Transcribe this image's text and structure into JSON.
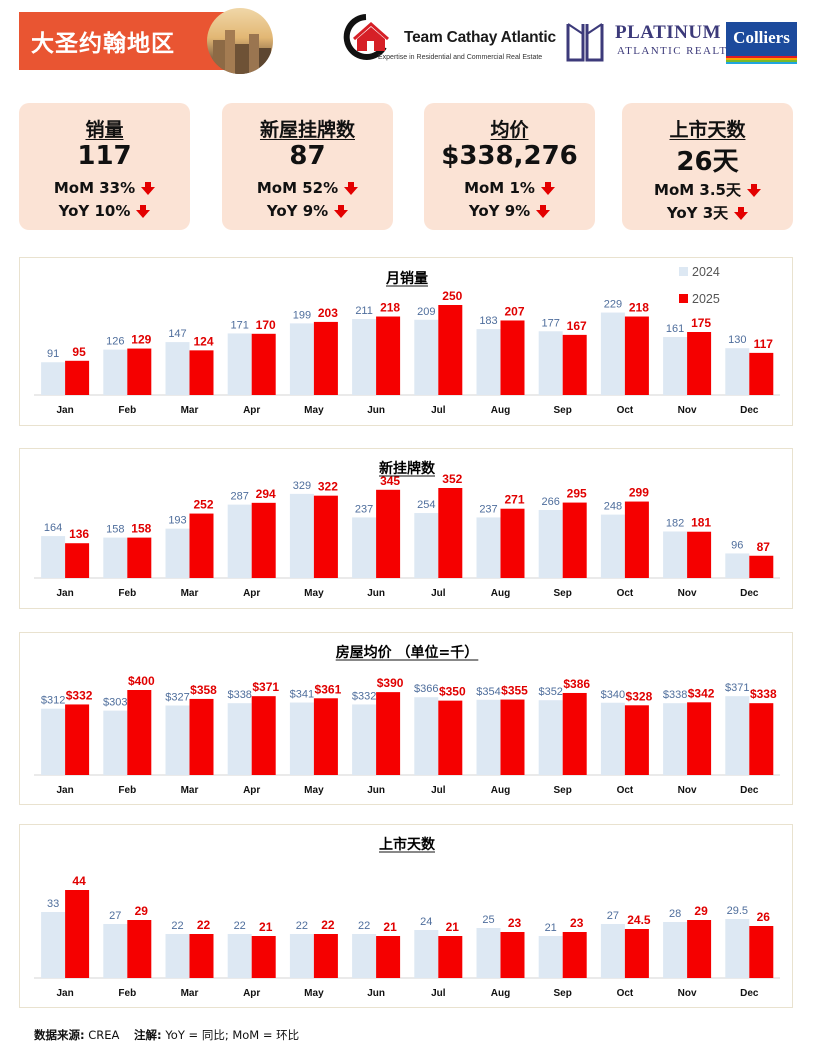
{
  "header": {
    "title": "大圣约翰地区",
    "cathay_name": "Team Cathay Atlantic",
    "cathay_tagline": "Expertise in Residential and Commercial Real Estate",
    "platinum_name": "PLATINUM",
    "platinum_sub": "ATLANTIC REALTY",
    "colliers_name": "Colliers",
    "colors": {
      "banner": "#e95532",
      "platinum": "#3c3a7a",
      "colliers": "#1c4a9c"
    }
  },
  "kpis": [
    {
      "label": "销量",
      "value": "117",
      "mom": "MoM 33%",
      "yoy": "YoY 10%"
    },
    {
      "label": "新屋挂牌数",
      "value": "87",
      "mom": "MoM 52%",
      "yoy": "YoY 9%"
    },
    {
      "label": "均价",
      "value": "$338,276",
      "mom": "MoM 1%",
      "yoy": "YoY 9%"
    },
    {
      "label": "上市天数",
      "value": "26天",
      "mom": "MoM 3.5天",
      "yoy": "YoY 3天"
    }
  ],
  "chart_data": [
    {
      "type": "bar",
      "title": "月销量",
      "categories": [
        "Jan",
        "Feb",
        "Mar",
        "Apr",
        "May",
        "Jun",
        "Jul",
        "Aug",
        "Sep",
        "Oct",
        "Nov",
        "Dec"
      ],
      "series": [
        {
          "name": "2024",
          "color": "#dde8f3",
          "label_color": "#4f6e9c",
          "values": [
            91,
            126,
            147,
            171,
            199,
            211,
            209,
            183,
            177,
            229,
            161,
            130
          ],
          "labels": [
            "91",
            "126",
            "147",
            "171",
            "199",
            "211",
            "209",
            "183",
            "177",
            "229",
            "161",
            "130"
          ]
        },
        {
          "name": "2025",
          "color": "#f50000",
          "label_color": "#e00000",
          "values": [
            95,
            129,
            124,
            170,
            203,
            218,
            250,
            207,
            167,
            218,
            175,
            117
          ],
          "labels": [
            "95",
            "129",
            "124",
            "170",
            "203",
            "218",
            "250",
            "207",
            "167",
            "218",
            "175",
            "117"
          ]
        }
      ],
      "legend": "top-right",
      "ylim": [
        0,
        300
      ]
    },
    {
      "type": "bar",
      "title": "新挂牌数",
      "categories": [
        "Jan",
        "Feb",
        "Mar",
        "Apr",
        "May",
        "Jun",
        "Jul",
        "Aug",
        "Sep",
        "Oct",
        "Nov",
        "Dec"
      ],
      "series": [
        {
          "name": "2024",
          "color": "#dde8f3",
          "label_color": "#4f6e9c",
          "values": [
            164,
            158,
            193,
            287,
            329,
            237,
            254,
            237,
            266,
            248,
            182,
            96
          ],
          "labels": [
            "164",
            "158",
            "193",
            "287",
            "329",
            "237",
            "254",
            "237",
            "266",
            "248",
            "182",
            "96"
          ]
        },
        {
          "name": "2025",
          "color": "#f50000",
          "label_color": "#e00000",
          "values": [
            136,
            158,
            252,
            294,
            322,
            345,
            352,
            271,
            295,
            299,
            181,
            87
          ],
          "labels": [
            "136",
            "158",
            "252",
            "294",
            "322",
            "345",
            "352",
            "271",
            "295",
            "299",
            "181",
            "87"
          ]
        }
      ],
      "ylim": [
        0,
        420
      ]
    },
    {
      "type": "bar",
      "title": "房屋均价 （单位=千）",
      "categories": [
        "Jan",
        "Feb",
        "Mar",
        "Apr",
        "May",
        "Jun",
        "Jul",
        "Aug",
        "Sep",
        "Oct",
        "Nov",
        "Dec"
      ],
      "series": [
        {
          "name": "2024",
          "color": "#dde8f3",
          "label_color": "#4f6e9c",
          "values": [
            312,
            303,
            327,
            338,
            341,
            332,
            366,
            354,
            352,
            340,
            338,
            371
          ],
          "labels": [
            "$312",
            "$303",
            "$327",
            "$338",
            "$341",
            "$332",
            "$366",
            "$354",
            "$352",
            "$340",
            "$338",
            "$371"
          ]
        },
        {
          "name": "2025",
          "color": "#f50000",
          "label_color": "#e00000",
          "values": [
            332,
            400,
            358,
            371,
            361,
            390,
            350,
            355,
            386,
            328,
            342,
            338
          ],
          "labels": [
            "$332",
            "$400",
            "$358",
            "$371",
            "$361",
            "$390",
            "$350",
            "$355",
            "$386",
            "$328",
            "$342",
            "$338"
          ]
        }
      ],
      "ylim": [
        0,
        500
      ]
    },
    {
      "type": "bar",
      "title": "上市天数",
      "categories": [
        "Jan",
        "Feb",
        "Mar",
        "Apr",
        "May",
        "Jun",
        "Jul",
        "Aug",
        "Sep",
        "Oct",
        "Nov",
        "Dec"
      ],
      "series": [
        {
          "name": "2024",
          "color": "#dde8f3",
          "label_color": "#4f6e9c",
          "values": [
            33,
            27,
            22,
            22,
            22,
            22,
            24,
            25,
            21,
            27,
            28,
            29.5
          ],
          "labels": [
            "33",
            "27",
            "22",
            "22",
            "22",
            "22",
            "24",
            "25",
            "21",
            "27",
            "28",
            "29.5"
          ]
        },
        {
          "name": "2025",
          "color": "#f50000",
          "label_color": "#e00000",
          "values": [
            44,
            29,
            22,
            21,
            22,
            21,
            21,
            23,
            23,
            24.5,
            29,
            26
          ],
          "labels": [
            "44",
            "29",
            "22",
            "21",
            "22",
            "21",
            "21",
            "23",
            "23",
            "24.5",
            "29",
            "26"
          ]
        }
      ],
      "ylim": [
        0,
        60
      ]
    }
  ],
  "footer": {
    "source_label": "数据来源:",
    "source_value": "CREA",
    "note_label": "注解:",
    "note_value": "YoY = 同比; MoM = 环比"
  }
}
